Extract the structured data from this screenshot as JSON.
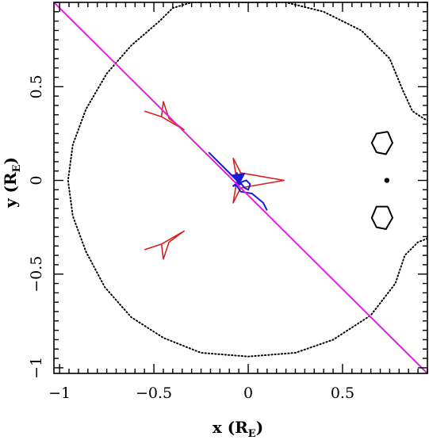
{
  "chart_data": {
    "type": "line",
    "title": "",
    "xlabel": "x (R",
    "xlabel_sub": "E",
    "xlabel_close": ")",
    "ylabel": "y (R",
    "ylabel_sub": "E",
    "ylabel_close": ")",
    "xlim": [
      -1.03,
      0.95
    ],
    "ylim": [
      -1.03,
      0.95
    ],
    "grid": false,
    "xticks": [
      {
        "value": -1,
        "label": "−1"
      },
      {
        "value": -0.5,
        "label": "−0.5"
      },
      {
        "value": 0,
        "label": "0"
      },
      {
        "value": 0.5,
        "label": "0.5"
      }
    ],
    "yticks": [
      {
        "value": -1,
        "label": "−1"
      },
      {
        "value": -0.5,
        "label": "−0.5"
      },
      {
        "value": 0,
        "label": "0"
      },
      {
        "value": 0.5,
        "label": "0.5"
      }
    ],
    "colors": {
      "critical_curve": "#000000",
      "caustics": "#d42020",
      "source_trajectory": "#1a1ad8",
      "lens_axis_line": "#e020e0"
    },
    "series": [
      {
        "kind": "critical_curve_outer",
        "points": [
          [
            -0.4,
            0.92
          ],
          [
            -0.3,
            0.95
          ],
          [
            0.0,
            0.95
          ],
          [
            0.2,
            0.95
          ],
          [
            0.4,
            0.9
          ],
          [
            0.6,
            0.8
          ],
          [
            0.75,
            0.65
          ],
          [
            0.82,
            0.48
          ],
          [
            0.87,
            0.37
          ],
          [
            0.93,
            0.33
          ],
          [
            0.95,
            0.32
          ]
        ]
      },
      {
        "kind": "critical_curve_outer",
        "points": [
          [
            0.95,
            -0.31
          ],
          [
            0.9,
            -0.33
          ],
          [
            0.83,
            -0.4
          ],
          [
            0.78,
            -0.55
          ],
          [
            0.65,
            -0.72
          ],
          [
            0.45,
            -0.85
          ],
          [
            0.25,
            -0.92
          ],
          [
            0.0,
            -0.94
          ],
          [
            -0.25,
            -0.92
          ],
          [
            -0.45,
            -0.84
          ],
          [
            -0.62,
            -0.73
          ],
          [
            -0.76,
            -0.57
          ],
          [
            -0.86,
            -0.38
          ],
          [
            -0.93,
            -0.19
          ],
          [
            -0.955,
            0.0
          ],
          [
            -0.93,
            0.19
          ],
          [
            -0.86,
            0.38
          ],
          [
            -0.75,
            0.57
          ],
          [
            -0.62,
            0.72
          ],
          [
            -0.47,
            0.85
          ],
          [
            -0.4,
            0.92
          ]
        ]
      },
      {
        "kind": "critical_curve_small_upper",
        "points": [
          [
            0.74,
            0.26
          ],
          [
            0.765,
            0.2
          ],
          [
            0.73,
            0.14
          ],
          [
            0.68,
            0.15
          ],
          [
            0.655,
            0.2
          ],
          [
            0.68,
            0.25
          ],
          [
            0.74,
            0.26
          ]
        ]
      },
      {
        "kind": "critical_curve_small_lower",
        "points": [
          [
            0.74,
            -0.14
          ],
          [
            0.765,
            -0.2
          ],
          [
            0.73,
            -0.26
          ],
          [
            0.68,
            -0.25
          ],
          [
            0.655,
            -0.2
          ],
          [
            0.68,
            -0.14
          ],
          [
            0.74,
            -0.14
          ]
        ]
      },
      {
        "kind": "lens_point",
        "points": [
          [
            0.735,
            0.0
          ]
        ]
      },
      {
        "kind": "caustic_upper_left",
        "points": [
          [
            -0.55,
            0.37
          ],
          [
            -0.46,
            0.34
          ],
          [
            -0.34,
            0.27
          ],
          [
            -0.42,
            0.33
          ],
          [
            -0.45,
            0.42
          ],
          [
            -0.46,
            0.34
          ],
          [
            -0.55,
            0.37
          ]
        ]
      },
      {
        "kind": "caustic_lower_left",
        "points": [
          [
            -0.55,
            -0.37
          ],
          [
            -0.46,
            -0.34
          ],
          [
            -0.34,
            -0.27
          ],
          [
            -0.42,
            -0.33
          ],
          [
            -0.45,
            -0.42
          ],
          [
            -0.46,
            -0.34
          ],
          [
            -0.55,
            -0.37
          ]
        ]
      },
      {
        "kind": "caustic_central",
        "points": [
          [
            -0.08,
            0.12
          ],
          [
            -0.04,
            0.04
          ],
          [
            0.19,
            0.0
          ],
          [
            -0.04,
            -0.04
          ],
          [
            -0.08,
            -0.12
          ],
          [
            -0.06,
            0.0
          ],
          [
            -0.08,
            0.12
          ]
        ]
      },
      {
        "kind": "source_trajectory",
        "points": [
          [
            -0.21,
            0.15
          ],
          [
            -0.14,
            0.08
          ],
          [
            -0.09,
            0.03
          ],
          [
            -0.07,
            0.02
          ],
          [
            -0.06,
            0.04
          ],
          [
            -0.05,
            0.0
          ],
          [
            -0.02,
            -0.04
          ],
          [
            0.0,
            -0.05
          ],
          [
            0.01,
            -0.02
          ],
          [
            -0.01,
            0.0
          ],
          [
            -0.04,
            -0.01
          ],
          [
            -0.06,
            -0.03
          ],
          [
            -0.04,
            -0.06
          ],
          [
            0.02,
            -0.07
          ],
          [
            0.08,
            -0.12
          ],
          [
            0.1,
            -0.16
          ]
        ]
      },
      {
        "kind": "source_arrow",
        "points": [
          [
            -0.09,
            0.03
          ],
          [
            -0.04,
            -0.02
          ],
          [
            -0.08,
            -0.03
          ],
          [
            -0.04,
            0.0
          ],
          [
            -0.02,
            0.04
          ]
        ]
      },
      {
        "kind": "lens_axis_line",
        "points": [
          [
            -1.03,
            0.95
          ],
          [
            0.95,
            -1.03
          ]
        ]
      }
    ]
  }
}
